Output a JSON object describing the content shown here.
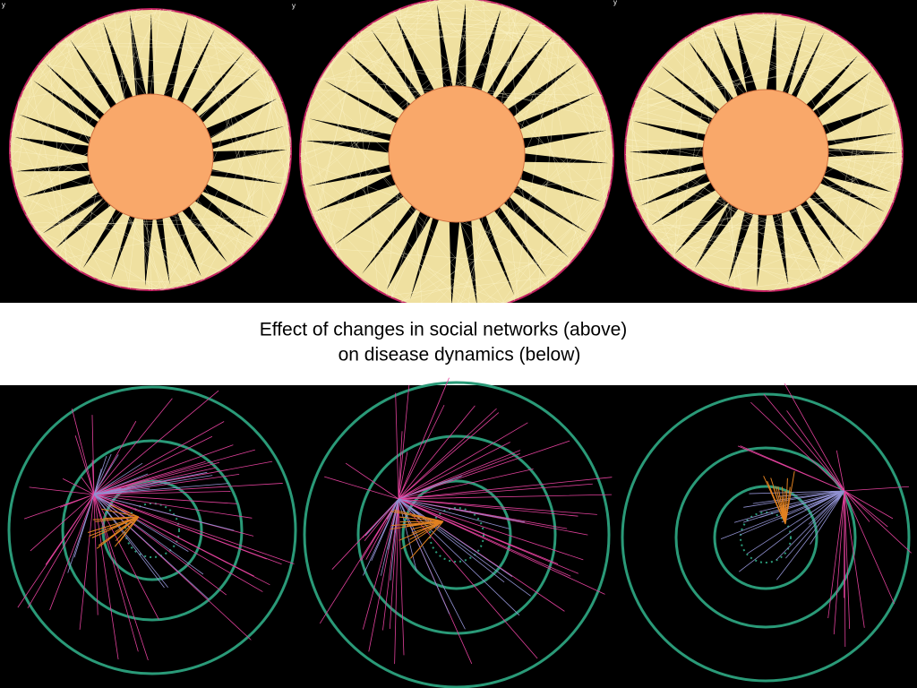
{
  "caption": {
    "line1": "Effect of changes in social networks (above)",
    "line2": "on disease dynamics (below)"
  },
  "panel_labels": [
    "y",
    "y",
    "y"
  ]
}
